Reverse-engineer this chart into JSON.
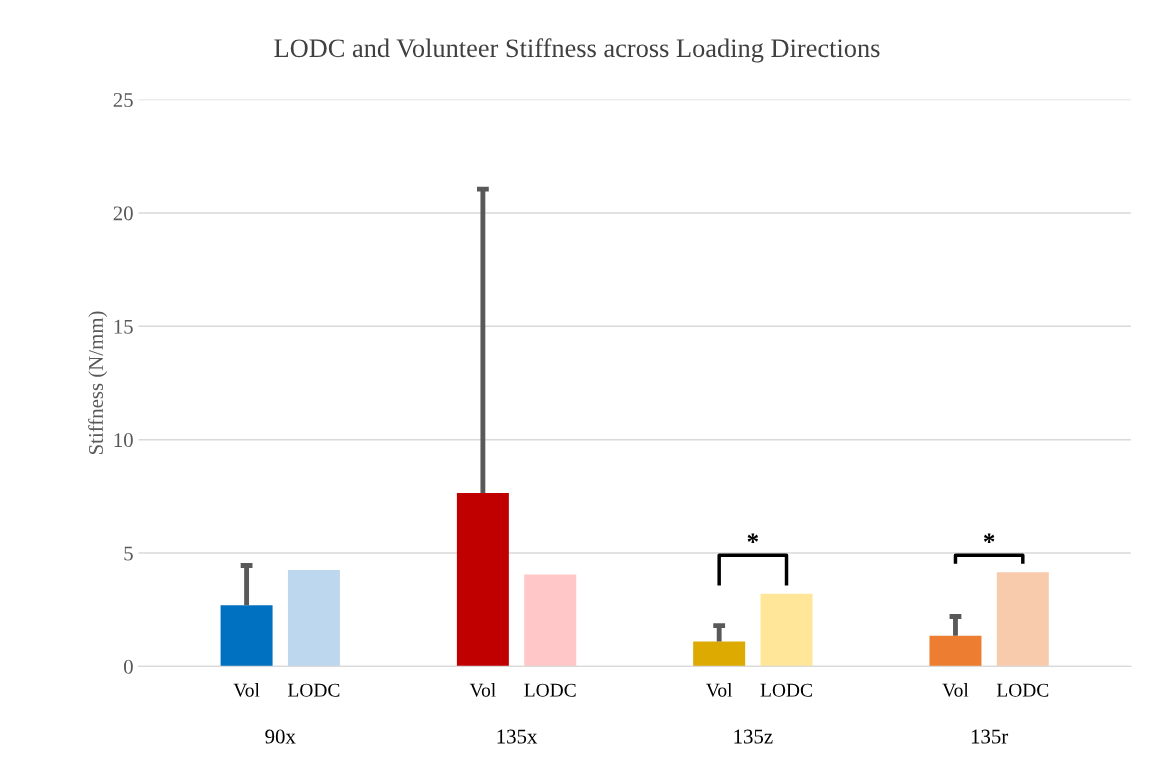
{
  "chart_data": {
    "type": "bar",
    "title": "LODC and Volunteer Stiffness across Loading Directions",
    "ylabel": "Stiffness (N/mm)",
    "categories": [
      "90x",
      "135x",
      "135z",
      "135r"
    ],
    "series": [
      {
        "name": "Vol",
        "colors": [
          "#0070c0",
          "#c00000",
          "#dcaa00",
          "#ed7d31"
        ],
        "values": [
          2.7,
          7.65,
          1.1,
          1.35
        ],
        "errors": [
          [
            2.7,
            4.45
          ],
          [
            7.65,
            21.05
          ],
          [
            1.1,
            1.8
          ],
          [
            1.35,
            2.2
          ]
        ]
      },
      {
        "name": "LODC",
        "colors": [
          "#bdd7ee",
          "#ffc7c7",
          "#ffe699",
          "#f8cbad"
        ],
        "values": [
          4.25,
          4.05,
          3.2,
          4.15
        ]
      }
    ],
    "ylim": [
      0,
      25
    ],
    "yticks": [
      0,
      5,
      10,
      15,
      20,
      25
    ],
    "grid": "y",
    "annotations": [
      "*",
      "*"
    ]
  }
}
